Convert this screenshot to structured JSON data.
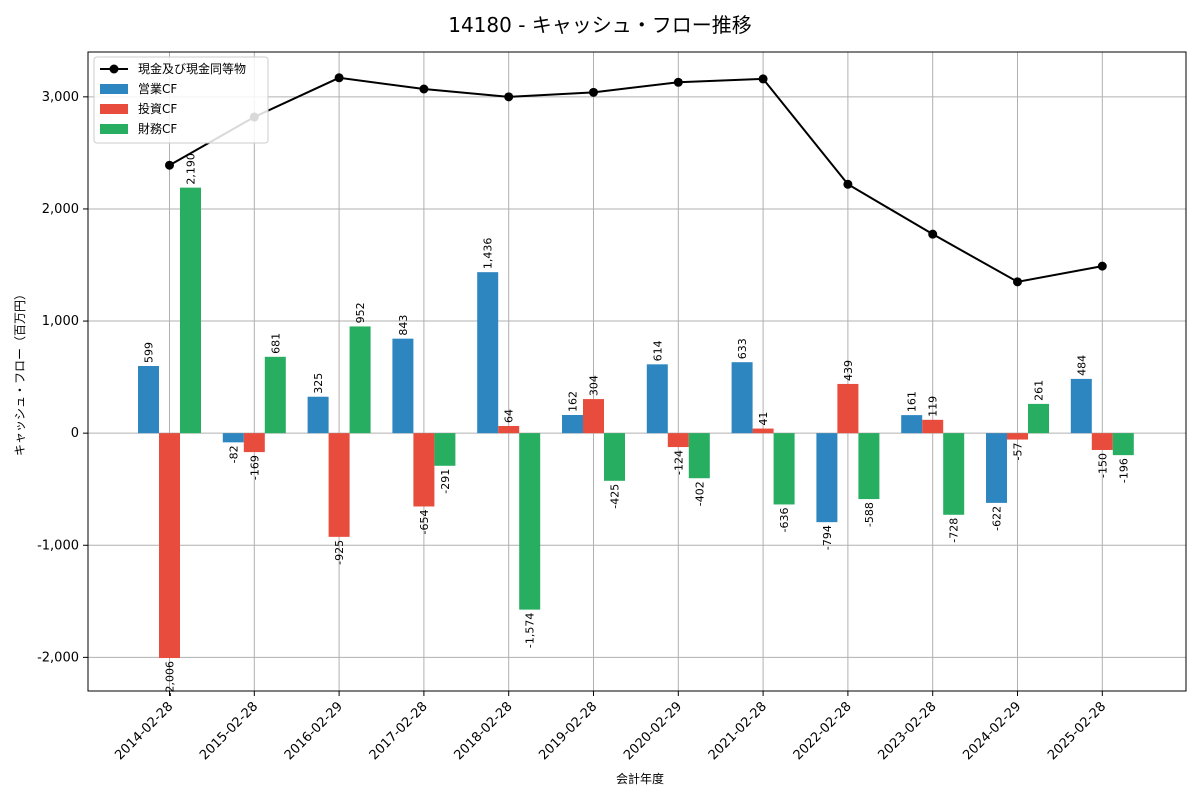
{
  "chart_data": {
    "type": "bar",
    "title": "14180 - キャッシュ・フロー推移",
    "xlabel": "会計年度",
    "ylabel": "キャッシュ・フロー（百万円）",
    "ylim": [
      -2300,
      3400
    ],
    "yticks": [
      -2000,
      -1000,
      0,
      1000,
      2000,
      3000
    ],
    "ytick_labels": [
      "-2,000",
      "-1,000",
      "0",
      "1,000",
      "2,000",
      "3,000"
    ],
    "grid": true,
    "legend_position": "top-left",
    "categories": [
      "2014-02-28",
      "2015-02-28",
      "2016-02-29",
      "2017-02-28",
      "2018-02-28",
      "2019-02-28",
      "2020-02-29",
      "2021-02-28",
      "2022-02-28",
      "2023-02-28",
      "2024-02-29",
      "2025-02-28"
    ],
    "series": [
      {
        "name": "営業CF",
        "type": "bar",
        "color": "#2E86C1",
        "values": [
          599,
          -82,
          325,
          843,
          1436,
          162,
          614,
          633,
          -794,
          161,
          -622,
          484
        ],
        "labels": [
          "599",
          "-82",
          "325",
          "843",
          "1,436",
          "162",
          "614",
          "633",
          "-794",
          "161",
          "-622",
          "484"
        ]
      },
      {
        "name": "投資CF",
        "type": "bar",
        "color": "#E74C3C",
        "values": [
          -2006,
          -169,
          -925,
          -654,
          64,
          304,
          -124,
          41,
          439,
          119,
          -57,
          -150
        ],
        "labels": [
          "-2,006",
          "-169",
          "-925",
          "-654",
          "64",
          "304",
          "-124",
          "41",
          "439",
          "119",
          "-57",
          "-150"
        ]
      },
      {
        "name": "財務CF",
        "type": "bar",
        "color": "#27AE60",
        "values": [
          2190,
          681,
          952,
          -291,
          -1574,
          -425,
          -402,
          -636,
          -588,
          -728,
          261,
          -196
        ],
        "labels": [
          "2,190",
          "681",
          "952",
          "-291",
          "-1,574",
          "-425",
          "-402",
          "-636",
          "-588",
          "-728",
          "261",
          "-196"
        ]
      },
      {
        "name": "現金及び現金同等物",
        "type": "line",
        "color": "#000000",
        "values": [
          2390,
          2820,
          3170,
          3070,
          3000,
          3040,
          3130,
          3160,
          2220,
          1775,
          1350,
          1490
        ]
      }
    ]
  }
}
